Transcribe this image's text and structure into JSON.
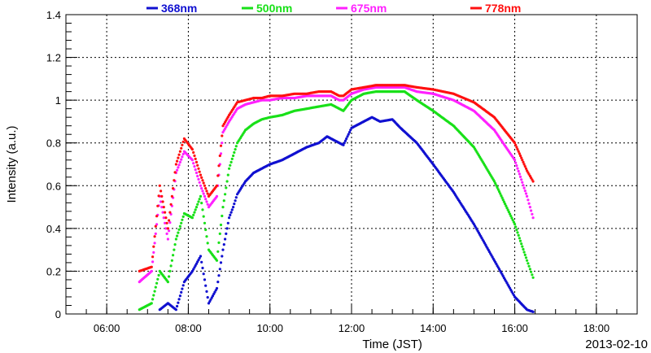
{
  "chart_data": {
    "type": "scatter",
    "title": "",
    "xlabel": "Time (JST)",
    "ylabel": "Intensity (a.u.)",
    "date_label": "2013-02-10",
    "x_unit": "hours",
    "xlim": [
      5.0,
      19.0
    ],
    "ylim": [
      0,
      1.4
    ],
    "x_ticks": [
      {
        "value": 6,
        "label": "06:00"
      },
      {
        "value": 8,
        "label": "08:00"
      },
      {
        "value": 10,
        "label": "10:00"
      },
      {
        "value": 12,
        "label": "12:00"
      },
      {
        "value": 14,
        "label": "14:00"
      },
      {
        "value": 16,
        "label": "16:00"
      },
      {
        "value": 18,
        "label": "18:00"
      }
    ],
    "y_ticks": [
      {
        "value": 0,
        "label": "0"
      },
      {
        "value": 0.2,
        "label": "0.2"
      },
      {
        "value": 0.4,
        "label": "0.4"
      },
      {
        "value": 0.6,
        "label": "0.6"
      },
      {
        "value": 0.8,
        "label": "0.8"
      },
      {
        "value": 1.0,
        "label": "1"
      },
      {
        "value": 1.2,
        "label": "1.2"
      },
      {
        "value": 1.4,
        "label": "1.4"
      }
    ],
    "grid": true,
    "legend_position": "top",
    "series": [
      {
        "name": "368nm",
        "color": "#1010d0",
        "points": [
          [
            7.3,
            0.02
          ],
          [
            7.5,
            0.05
          ],
          [
            7.7,
            0.02
          ],
          [
            7.9,
            0.15
          ],
          [
            8.1,
            0.2
          ],
          [
            8.3,
            0.27
          ],
          [
            8.5,
            0.05
          ],
          [
            8.7,
            0.12
          ],
          [
            8.85,
            0.3
          ],
          [
            9.0,
            0.45
          ],
          [
            9.1,
            0.5
          ],
          [
            9.2,
            0.56
          ],
          [
            9.4,
            0.62
          ],
          [
            9.6,
            0.66
          ],
          [
            9.8,
            0.68
          ],
          [
            10.0,
            0.7
          ],
          [
            10.3,
            0.72
          ],
          [
            10.6,
            0.75
          ],
          [
            10.9,
            0.78
          ],
          [
            11.2,
            0.8
          ],
          [
            11.4,
            0.83
          ],
          [
            11.7,
            0.8
          ],
          [
            11.8,
            0.79
          ],
          [
            12.0,
            0.87
          ],
          [
            12.2,
            0.89
          ],
          [
            12.5,
            0.92
          ],
          [
            12.7,
            0.9
          ],
          [
            13.0,
            0.91
          ],
          [
            13.2,
            0.87
          ],
          [
            13.6,
            0.8
          ],
          [
            14.0,
            0.7
          ],
          [
            14.5,
            0.57
          ],
          [
            15.0,
            0.42
          ],
          [
            15.5,
            0.25
          ],
          [
            16.0,
            0.08
          ],
          [
            16.3,
            0.02
          ],
          [
            16.45,
            0.01
          ]
        ]
      },
      {
        "name": "500nm",
        "color": "#18e018",
        "points": [
          [
            6.8,
            0.02
          ],
          [
            7.1,
            0.05
          ],
          [
            7.3,
            0.2
          ],
          [
            7.5,
            0.15
          ],
          [
            7.7,
            0.35
          ],
          [
            7.9,
            0.47
          ],
          [
            8.1,
            0.45
          ],
          [
            8.3,
            0.55
          ],
          [
            8.5,
            0.3
          ],
          [
            8.7,
            0.25
          ],
          [
            8.85,
            0.5
          ],
          [
            9.0,
            0.68
          ],
          [
            9.1,
            0.74
          ],
          [
            9.2,
            0.8
          ],
          [
            9.4,
            0.86
          ],
          [
            9.6,
            0.89
          ],
          [
            9.8,
            0.91
          ],
          [
            10.0,
            0.92
          ],
          [
            10.3,
            0.93
          ],
          [
            10.6,
            0.95
          ],
          [
            10.9,
            0.96
          ],
          [
            11.2,
            0.97
          ],
          [
            11.5,
            0.98
          ],
          [
            11.7,
            0.96
          ],
          [
            11.8,
            0.95
          ],
          [
            12.0,
            1.0
          ],
          [
            12.3,
            1.03
          ],
          [
            12.6,
            1.04
          ],
          [
            13.0,
            1.04
          ],
          [
            13.3,
            1.04
          ],
          [
            13.6,
            1.0
          ],
          [
            14.0,
            0.95
          ],
          [
            14.5,
            0.88
          ],
          [
            15.0,
            0.78
          ],
          [
            15.5,
            0.62
          ],
          [
            16.0,
            0.42
          ],
          [
            16.3,
            0.25
          ],
          [
            16.45,
            0.17
          ]
        ]
      },
      {
        "name": "675nm",
        "color": "#ff20ff",
        "points": [
          [
            6.8,
            0.15
          ],
          [
            7.1,
            0.2
          ],
          [
            7.3,
            0.55
          ],
          [
            7.5,
            0.35
          ],
          [
            7.7,
            0.66
          ],
          [
            7.9,
            0.76
          ],
          [
            8.1,
            0.72
          ],
          [
            8.3,
            0.6
          ],
          [
            8.5,
            0.5
          ],
          [
            8.7,
            0.55
          ],
          [
            8.85,
            0.85
          ],
          [
            9.0,
            0.9
          ],
          [
            9.1,
            0.93
          ],
          [
            9.2,
            0.96
          ],
          [
            9.4,
            0.98
          ],
          [
            9.6,
            0.99
          ],
          [
            9.8,
            1.0
          ],
          [
            10.0,
            1.0
          ],
          [
            10.3,
            1.01
          ],
          [
            10.6,
            1.01
          ],
          [
            10.9,
            1.02
          ],
          [
            11.2,
            1.02
          ],
          [
            11.5,
            1.02
          ],
          [
            11.7,
            1.0
          ],
          [
            11.8,
            1.0
          ],
          [
            12.0,
            1.03
          ],
          [
            12.3,
            1.05
          ],
          [
            12.6,
            1.06
          ],
          [
            13.0,
            1.06
          ],
          [
            13.3,
            1.06
          ],
          [
            13.6,
            1.04
          ],
          [
            14.0,
            1.03
          ],
          [
            14.5,
            1.0
          ],
          [
            15.0,
            0.95
          ],
          [
            15.5,
            0.86
          ],
          [
            16.0,
            0.72
          ],
          [
            16.3,
            0.55
          ],
          [
            16.45,
            0.45
          ]
        ]
      },
      {
        "name": "778nm",
        "color": "#ff1010",
        "points": [
          [
            6.8,
            0.2
          ],
          [
            7.1,
            0.22
          ],
          [
            7.3,
            0.6
          ],
          [
            7.5,
            0.4
          ],
          [
            7.7,
            0.7
          ],
          [
            7.9,
            0.82
          ],
          [
            8.1,
            0.77
          ],
          [
            8.3,
            0.65
          ],
          [
            8.5,
            0.55
          ],
          [
            8.7,
            0.6
          ],
          [
            8.85,
            0.88
          ],
          [
            9.0,
            0.93
          ],
          [
            9.1,
            0.96
          ],
          [
            9.2,
            0.99
          ],
          [
            9.4,
            1.0
          ],
          [
            9.6,
            1.01
          ],
          [
            9.8,
            1.01
          ],
          [
            10.0,
            1.02
          ],
          [
            10.3,
            1.02
          ],
          [
            10.6,
            1.03
          ],
          [
            10.9,
            1.03
          ],
          [
            11.2,
            1.04
          ],
          [
            11.5,
            1.04
          ],
          [
            11.7,
            1.02
          ],
          [
            11.8,
            1.02
          ],
          [
            12.0,
            1.05
          ],
          [
            12.3,
            1.06
          ],
          [
            12.6,
            1.07
          ],
          [
            13.0,
            1.07
          ],
          [
            13.3,
            1.07
          ],
          [
            13.6,
            1.06
          ],
          [
            14.0,
            1.05
          ],
          [
            14.5,
            1.03
          ],
          [
            15.0,
            0.99
          ],
          [
            15.5,
            0.92
          ],
          [
            16.0,
            0.8
          ],
          [
            16.3,
            0.67
          ],
          [
            16.45,
            0.62
          ]
        ]
      }
    ]
  }
}
